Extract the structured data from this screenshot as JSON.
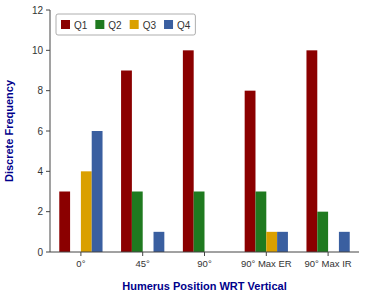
{
  "chart_data": {
    "type": "bar",
    "categories": [
      "0°",
      "45°",
      "90°",
      "90° Max ER",
      "90° Max IR"
    ],
    "series": [
      {
        "name": "Q1",
        "color": "#8B0000",
        "values": [
          3,
          9,
          10,
          8,
          10
        ]
      },
      {
        "name": "Q2",
        "color": "#1F7A1F",
        "values": [
          0,
          3,
          3,
          3,
          2
        ]
      },
      {
        "name": "Q3",
        "color": "#DAA000",
        "values": [
          4,
          0,
          0,
          1,
          0
        ]
      },
      {
        "name": "Q4",
        "color": "#3A5FA0",
        "values": [
          6,
          1,
          0,
          1,
          1
        ]
      }
    ],
    "xlabel": "Humerus Position WRT Vertical",
    "ylabel": "Discrete Frequency",
    "ylim": [
      0,
      12
    ],
    "yticks": [
      0,
      2,
      4,
      6,
      8,
      10,
      12
    ],
    "grid": false,
    "legend": "upper left"
  }
}
